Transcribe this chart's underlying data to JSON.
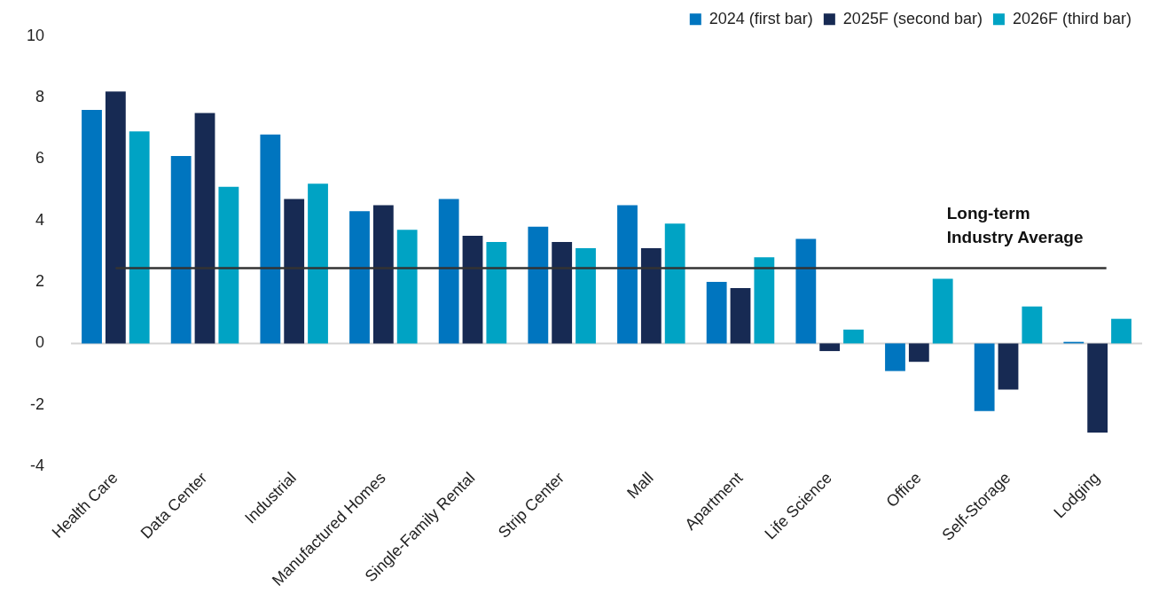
{
  "chart_data": {
    "type": "bar",
    "categories": [
      "Health Care",
      "Data Center",
      "Industrial",
      "Manufactured Homes",
      "Single-Family Rental",
      "Strip Center",
      "Mall",
      "Apartment",
      "Life Science",
      "Office",
      "Self-Storage",
      "Lodging"
    ],
    "series": [
      {
        "name": "2024 (first bar)",
        "color": "#0075bf",
        "values": [
          7.6,
          6.1,
          6.8,
          4.3,
          4.7,
          3.8,
          4.5,
          2.0,
          3.4,
          -0.9,
          -2.2,
          0.05
        ]
      },
      {
        "name": "2025F (second bar)",
        "color": "#172a53",
        "values": [
          8.2,
          7.5,
          4.7,
          4.5,
          3.5,
          3.3,
          3.1,
          1.8,
          -0.25,
          -0.6,
          -1.5,
          -2.9
        ]
      },
      {
        "name": "2026F (third bar)",
        "color": "#00a3c4",
        "values": [
          6.9,
          5.1,
          5.2,
          3.7,
          3.3,
          3.1,
          3.9,
          2.8,
          0.45,
          2.1,
          1.2,
          0.8
        ]
      }
    ],
    "ylim": [
      -4,
      10
    ],
    "yticks": [
      -4,
      -2,
      0,
      2,
      4,
      6,
      8,
      10
    ],
    "grid": false,
    "legend": "top right",
    "ref_lines": [
      {
        "axis": "y",
        "value": 0,
        "color": "#d4d4d4"
      },
      {
        "axis": "y",
        "value": 2.45,
        "label": "Long-term Industry Average",
        "color": "#333333"
      }
    ]
  }
}
